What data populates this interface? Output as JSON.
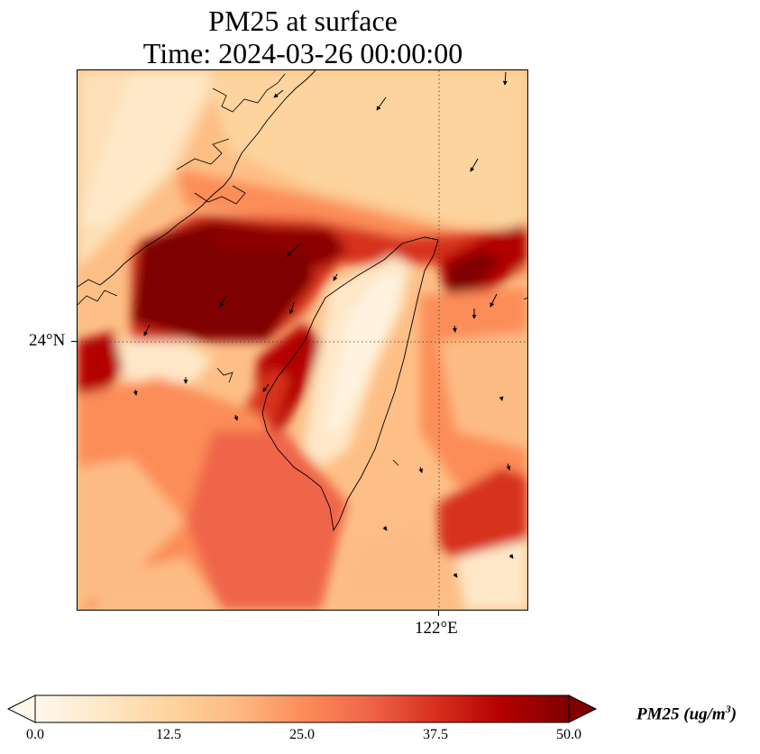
{
  "title": {
    "line1": "PM25 at surface",
    "line2": "Time: 2024-03-26 00:00:00"
  },
  "map": {
    "lat_gridline_label": "24°N",
    "lon_gridline_label": "122°E",
    "gridlines": "dotted",
    "coastline_color": "#000000",
    "wind_vectors": "shown"
  },
  "colorbar": {
    "ticks": [
      "0.0",
      "12.5",
      "25.0",
      "37.5",
      "50.0"
    ],
    "min": 0.0,
    "max": 50.0,
    "extend": "both",
    "units_prefix": "PM25 (ug/m",
    "units_exponent": "3",
    "units_suffix": ")",
    "colors": [
      "#fff7ec",
      "#fee8c8",
      "#fdd49e",
      "#fdbb84",
      "#fc8d59",
      "#ef6548",
      "#d7301f",
      "#b30000",
      "#7f0000"
    ]
  }
}
